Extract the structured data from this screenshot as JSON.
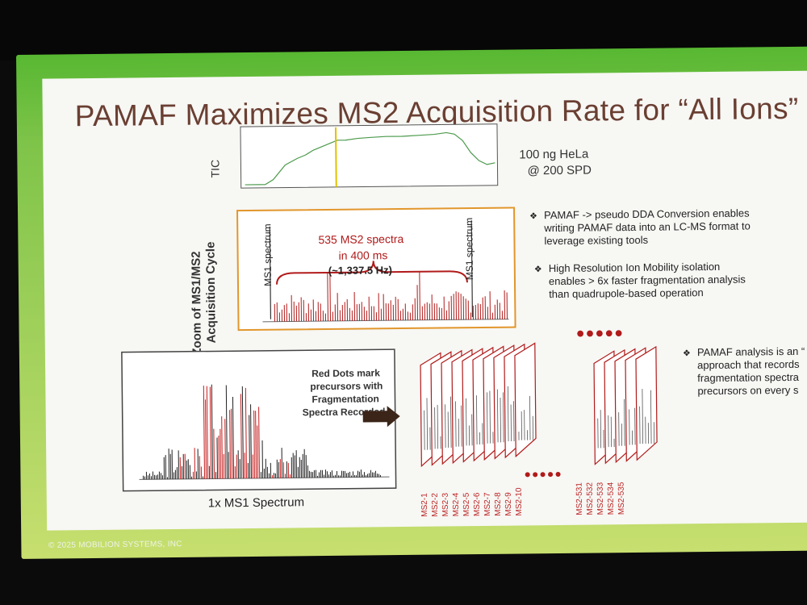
{
  "slide": {
    "title": "PAMAF Maximizes MS2 Acquisition Rate for “All Ions”",
    "footer": "© 2025 MOBILION SYSTEMS, INC"
  },
  "tic_panel": {
    "axis_label": "TIC",
    "sample_line1": "100 ng HeLa",
    "sample_line2": "@ 200 SPD"
  },
  "zoom_panel": {
    "axis_label_line1": "Zoom of MS1/MS2",
    "axis_label_line2": "Acquisition Cycle",
    "ms1_left": "MS1 spectrum",
    "ms1_right": "MS1 spectrum",
    "count_line1": "535 MS2 spectra",
    "count_line2": "in 400 ms",
    "rate": "(~1,337.5 Hz)"
  },
  "ms1_panel": {
    "caption": "1x MS1 Spectrum",
    "note_line1": "Red Dots mark",
    "note_line2": "precursors with",
    "note_line3": "Fragmentation",
    "note_line4": "Spectra Recorded"
  },
  "bullets": [
    {
      "line1": "PAMAF -> pseudo DDA Conversion enables",
      "line2": "writing PAMAF data into an LC-MS format to",
      "line3": "leverage existing tools"
    },
    {
      "line1": "High Resolution Ion Mobility isolation",
      "line2": "enables > 6x faster fragmentation analysis",
      "line3": "than quadrupole-based operation"
    },
    {
      "line1": "PAMAF analysis is an “",
      "line2": "approach that records",
      "line3": "fragmentation spectra",
      "line4": "precursors on every s"
    }
  ],
  "ms2_labels_first": [
    "MS2-1",
    "MS2-2",
    "MS2-3",
    "MS2-4",
    "MS2-5",
    "MS2-6",
    "MS2-7",
    "MS2-8",
    "MS2-9",
    "MS2-10"
  ],
  "ms2_labels_last": [
    "MS2-531",
    "MS2-532",
    "MS2-533",
    "MS2-534",
    "MS2-535"
  ],
  "colors": {
    "accent_red": "#b11a1a",
    "title_brown": "#6a3f32",
    "screen_green": "#6cbd3d",
    "highlight_yellow": "#e2c100",
    "panel_orange": "#e2962c"
  }
}
